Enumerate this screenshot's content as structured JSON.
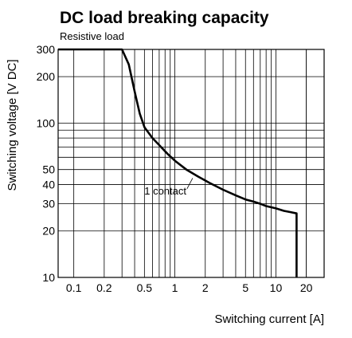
{
  "chart_data": {
    "type": "line",
    "title": "DC load breaking capacity",
    "subtitle": "Resistive load",
    "xlabel": "Switching current [A]",
    "ylabel": "Switching voltage [V DC]",
    "x_scale": "log",
    "y_scale": "log",
    "xlim": [
      0.07,
      30
    ],
    "ylim": [
      10,
      300
    ],
    "x_ticks": [
      0.1,
      0.2,
      0.5,
      1,
      2,
      5,
      10,
      20
    ],
    "x_tick_labels": [
      "0.1",
      "0.2",
      "0.5",
      "1",
      "2",
      "5",
      "10",
      "20"
    ],
    "y_ticks": [
      10,
      20,
      30,
      40,
      50,
      100,
      200,
      300
    ],
    "y_tick_labels": [
      "10",
      "20",
      "30",
      "40",
      "50",
      "100",
      "200",
      "300"
    ],
    "grid": true,
    "annotation": "1 contact",
    "series": [
      {
        "x": [
          0.07,
          0.3,
          0.35,
          0.4,
          0.45,
          0.5,
          0.6,
          0.7,
          0.85,
          1.0,
          1.3,
          1.7,
          2.2,
          3,
          4,
          5,
          6,
          7,
          8,
          10,
          12,
          14,
          16,
          16,
          16
        ],
        "y": [
          300,
          300,
          240,
          160,
          115,
          94,
          80,
          72,
          63,
          57,
          50,
          45,
          41,
          37,
          34,
          32,
          31,
          30,
          29,
          28,
          27,
          26.5,
          26,
          26,
          10
        ]
      }
    ]
  }
}
